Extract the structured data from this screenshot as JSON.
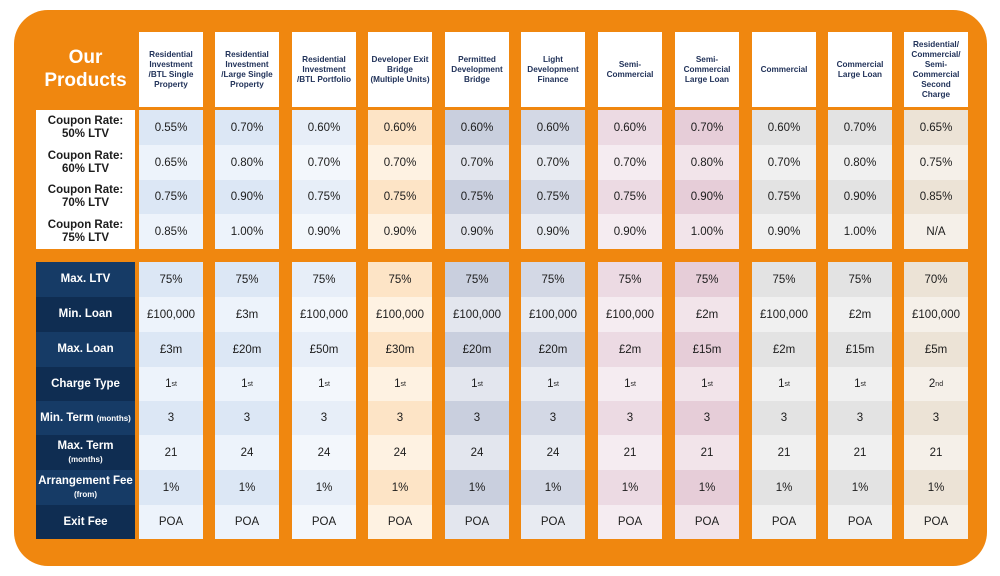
{
  "title": {
    "line1": "Our",
    "line2": "Products"
  },
  "colors": {
    "frame": "#f0870f",
    "label_dark": "#12335a"
  },
  "products": [
    {
      "name": "Residential Investment /BTL Single Property",
      "shades": [
        "#dce7f5",
        "#edf3fb"
      ]
    },
    {
      "name": "Residential Investment /Large Single Property",
      "shades": [
        "#dce7f5",
        "#edf3fb"
      ]
    },
    {
      "name": "Residential Investment /BTL Portfolio",
      "shades": [
        "#e7eef8",
        "#f3f7fc"
      ]
    },
    {
      "name": "Developer Exit Bridge (Multiple Units)",
      "shades": [
        "#fde4c6",
        "#fef2e2"
      ]
    },
    {
      "name": "Permitted Development Bridge",
      "shades": [
        "#c9cfde",
        "#e3e6ee"
      ]
    },
    {
      "name": "Light Development Finance",
      "shades": [
        "#d3d8e5",
        "#e8ebf2"
      ]
    },
    {
      "name": "Semi-Commercial",
      "shades": [
        "#ecdae3",
        "#f5ecf1"
      ]
    },
    {
      "name": "Semi-Commercial Large Loan",
      "shades": [
        "#e6cdd8",
        "#f2e4ea"
      ]
    },
    {
      "name": "Commercial",
      "shades": [
        "#e3e3e3",
        "#f0f0f0"
      ]
    },
    {
      "name": "Commercial Large Loan",
      "shades": [
        "#e3e3e3",
        "#f0f0f0"
      ]
    },
    {
      "name": "Residential/ Commercial/ Semi-Commercial Second Charge",
      "shades": [
        "#ece3d6",
        "#f5f0e9"
      ]
    }
  ],
  "coupon_rows": [
    {
      "label": "Coupon Rate: 50% LTV",
      "values": [
        "0.55%",
        "0.70%",
        "0.60%",
        "0.60%",
        "0.60%",
        "0.60%",
        "0.60%",
        "0.70%",
        "0.60%",
        "0.70%",
        "0.65%"
      ]
    },
    {
      "label": "Coupon Rate: 60% LTV",
      "values": [
        "0.65%",
        "0.80%",
        "0.70%",
        "0.70%",
        "0.70%",
        "0.70%",
        "0.70%",
        "0.80%",
        "0.70%",
        "0.80%",
        "0.75%"
      ]
    },
    {
      "label": "Coupon Rate: 70% LTV",
      "values": [
        "0.75%",
        "0.90%",
        "0.75%",
        "0.75%",
        "0.75%",
        "0.75%",
        "0.75%",
        "0.90%",
        "0.75%",
        "0.90%",
        "0.85%"
      ]
    },
    {
      "label": "Coupon Rate: 75% LTV",
      "values": [
        "0.85%",
        "1.00%",
        "0.90%",
        "0.90%",
        "0.90%",
        "0.90%",
        "0.90%",
        "1.00%",
        "0.90%",
        "1.00%",
        "N/A"
      ]
    }
  ],
  "detail_rows": [
    {
      "label": "Max. LTV",
      "sub": "",
      "values": [
        "75%",
        "75%",
        "75%",
        "75%",
        "75%",
        "75%",
        "75%",
        "75%",
        "75%",
        "75%",
        "70%"
      ]
    },
    {
      "label": "Min. Loan",
      "sub": "",
      "values": [
        "£100,000",
        "£3m",
        "£100,000",
        "£100,000",
        "£100,000",
        "£100,000",
        "£100,000",
        "£2m",
        "£100,000",
        "£2m",
        "£100,000"
      ]
    },
    {
      "label": "Max. Loan",
      "sub": "",
      "values": [
        "£3m",
        "£20m",
        "£50m",
        "£30m",
        "£20m",
        "£20m",
        "£2m",
        "£15m",
        "£2m",
        "£15m",
        "£5m"
      ]
    },
    {
      "label": "Charge Type",
      "sub": "",
      "values": [
        "1",
        "1",
        "1",
        "1",
        "1",
        "1",
        "1",
        "1",
        "1",
        "1",
        "2"
      ],
      "suffixes": [
        "st",
        "st",
        "st",
        "st",
        "st",
        "st",
        "st",
        "st",
        "st",
        "st",
        "nd"
      ]
    },
    {
      "label": "Min. Term",
      "sub": "(months)",
      "inline_sub": true,
      "values": [
        "3",
        "3",
        "3",
        "3",
        "3",
        "3",
        "3",
        "3",
        "3",
        "3",
        "3"
      ]
    },
    {
      "label": "Max. Term",
      "sub": "(months)",
      "values": [
        "21",
        "24",
        "24",
        "24",
        "24",
        "24",
        "21",
        "21",
        "21",
        "21",
        "21"
      ]
    },
    {
      "label": "Arrangement Fee",
      "sub": "(from)",
      "values": [
        "1%",
        "1%",
        "1%",
        "1%",
        "1%",
        "1%",
        "1%",
        "1%",
        "1%",
        "1%",
        "1%"
      ]
    },
    {
      "label": "Exit Fee",
      "sub": "",
      "values": [
        "POA",
        "POA",
        "POA",
        "POA",
        "POA",
        "POA",
        "POA",
        "POA",
        "POA",
        "POA",
        "POA"
      ]
    }
  ]
}
